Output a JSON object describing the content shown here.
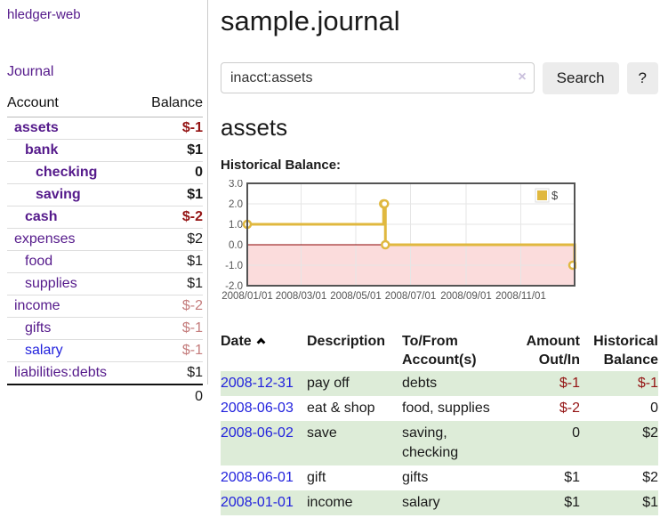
{
  "app": {
    "brand": "hledger-web",
    "nav_journal": "Journal"
  },
  "sidebar": {
    "header": {
      "account": "Account",
      "balance": "Balance"
    },
    "accounts": [
      {
        "name": "assets",
        "indent": 1,
        "bold": true,
        "link": "visited",
        "balance": "$-1",
        "balance_class": "negative"
      },
      {
        "name": "bank",
        "indent": 2,
        "bold": true,
        "link": "visited",
        "balance": "$1",
        "balance_class": "normal"
      },
      {
        "name": "checking",
        "indent": 3,
        "bold": true,
        "link": "visited",
        "balance": "0",
        "balance_class": "normal"
      },
      {
        "name": "saving",
        "indent": 3,
        "bold": true,
        "link": "visited",
        "balance": "$1",
        "balance_class": "normal"
      },
      {
        "name": "cash",
        "indent": 2,
        "bold": true,
        "link": "visited",
        "balance": "$-2",
        "balance_class": "negative"
      },
      {
        "name": "expenses",
        "indent": 1,
        "bold": false,
        "link": "visited",
        "balance": "$2",
        "balance_class": "normal"
      },
      {
        "name": "food",
        "indent": 2,
        "bold": false,
        "link": "visited",
        "balance": "$1",
        "balance_class": "normal"
      },
      {
        "name": "supplies",
        "indent": 2,
        "bold": false,
        "link": "visited",
        "balance": "$1",
        "balance_class": "normal"
      },
      {
        "name": "income",
        "indent": 1,
        "bold": false,
        "link": "visited",
        "balance": "$-2",
        "balance_class": "negative-muted"
      },
      {
        "name": "gifts",
        "indent": 2,
        "bold": false,
        "link": "visited",
        "balance": "$-1",
        "balance_class": "negative-muted"
      },
      {
        "name": "salary",
        "indent": 2,
        "bold": false,
        "link": "unvisited",
        "balance": "$-1",
        "balance_class": "negative-muted"
      },
      {
        "name": "liabilities:debts",
        "indent": 1,
        "bold": false,
        "link": "visited",
        "balance": "$1",
        "balance_class": "normal"
      }
    ],
    "total": "0"
  },
  "header": {
    "title": "sample.journal"
  },
  "search": {
    "value": "inacct:assets",
    "clear_icon": "×",
    "search_button": "Search",
    "help_button": "?"
  },
  "account_page": {
    "title": "assets",
    "chart_label": "Historical Balance:"
  },
  "chart_data": {
    "type": "line",
    "style": "step",
    "title": "Historical Balance",
    "series": [
      {
        "name": "$",
        "color": "#e0b83f",
        "points": [
          [
            "2008-01-01",
            1
          ],
          [
            "2008-06-01",
            2
          ],
          [
            "2008-06-02",
            2
          ],
          [
            "2008-06-03",
            0
          ],
          [
            "2008-12-31",
            -1
          ]
        ]
      }
    ],
    "x_range": [
      "2008-01-01",
      "2008-12-31"
    ],
    "x_ticks": [
      "2008/01/01",
      "2008/03/01",
      "2008/05/01",
      "2008/07/01",
      "2008/09/01",
      "2008/11/01"
    ],
    "y_ticks": [
      3,
      2,
      1,
      0,
      -1,
      -2
    ],
    "ylim": [
      -2,
      3
    ],
    "grid": true,
    "negative_region_shaded": true,
    "zero_line_color": "#8b0000",
    "legend": {
      "position": "top-right",
      "label": "$"
    }
  },
  "register": {
    "columns": [
      {
        "label": "Date",
        "sorted": "asc"
      },
      {
        "label": "Description"
      },
      {
        "label": "To/From Account(s)"
      },
      {
        "label": "Amount Out/In"
      },
      {
        "label": "Historical Balance"
      }
    ],
    "rows": [
      {
        "date": "2008-12-31",
        "description": "pay off",
        "accounts": "debts",
        "amount": "$-1",
        "amount_negative": true,
        "balance": "$-1",
        "balance_negative": true
      },
      {
        "date": "2008-06-03",
        "description": "eat & shop",
        "accounts": "food, supplies",
        "amount": "$-2",
        "amount_negative": true,
        "balance": "0",
        "balance_negative": false
      },
      {
        "date": "2008-06-02",
        "description": "save",
        "accounts": "saving, checking",
        "amount": "0",
        "amount_negative": false,
        "balance": "$2",
        "balance_negative": false
      },
      {
        "date": "2008-06-01",
        "description": "gift",
        "accounts": "gifts",
        "amount": "$1",
        "amount_negative": false,
        "balance": "$2",
        "balance_negative": false
      },
      {
        "date": "2008-01-01",
        "description": "income",
        "accounts": "salary",
        "amount": "$1",
        "amount_negative": false,
        "balance": "$1",
        "balance_negative": false
      }
    ]
  },
  "colors": {
    "link_purple": "#551a8b",
    "link_blue": "#2222dd",
    "negative_strong": "#941414",
    "negative_muted": "#c47c7c",
    "row_green": "#ddecd8",
    "chart_gold": "#e0b83f",
    "chart_negative_fill": "#fbdcdc",
    "chart_zero_line": "#8b0000"
  }
}
